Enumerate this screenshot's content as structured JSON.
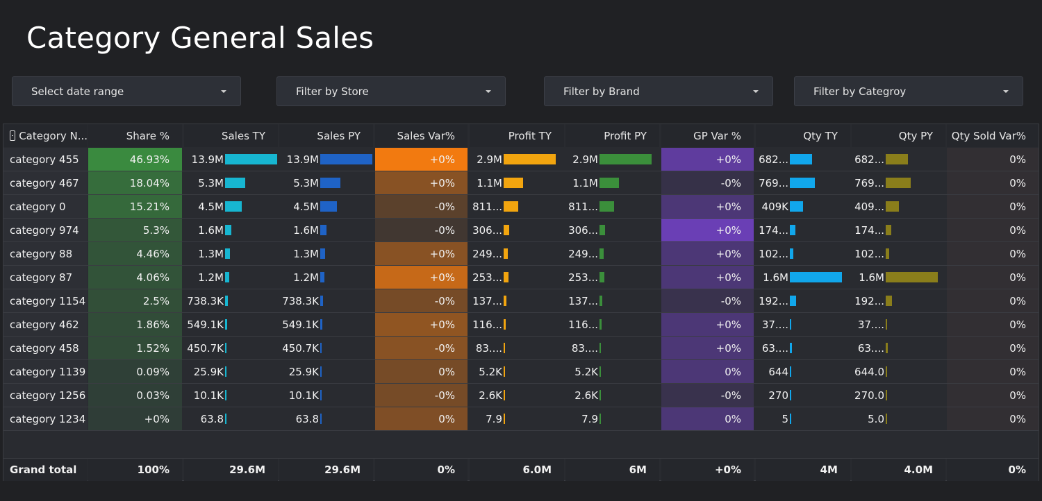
{
  "page_title": "Category General Sales",
  "filters": [
    {
      "label": "Select date range"
    },
    {
      "label": "Filter by Store"
    },
    {
      "label": "Filter by Brand"
    },
    {
      "label": "Filter by Categroy"
    }
  ],
  "table": {
    "headers": [
      "Category N...",
      "Share %",
      "Sales TY",
      "Sales PY",
      "Sales Var%",
      "Profit TY",
      "Profit PY",
      "GP Var %",
      "Qty TY",
      "Qty PY",
      "Qty Sold Var%"
    ],
    "colors": {
      "share": "#3a8a3f",
      "sales_ty_bar": "#17b6d1",
      "sales_py_bar": "#1f63c6",
      "sales_var": "#f27a10",
      "profit_ty_bar": "#f2a50f",
      "profit_py_bar": "#3b8f3b",
      "gp_var": "#6a3fb5",
      "qty_ty_bar": "#11a7ec",
      "qty_py_bar": "#8a7e1b"
    },
    "rows": [
      {
        "name": "category 455",
        "share": "46.93%",
        "share_value": 46.93,
        "sales_ty": "13.9M",
        "sales_ty_value": 13.9,
        "sales_py": "13.9M",
        "sales_py_value": 13.9,
        "sales_var": "+0%",
        "sales_var_intensity": 1.0,
        "profit_ty": "2.9M",
        "profit_ty_value": 2.9,
        "profit_py": "2.9M",
        "profit_py_value": 2.9,
        "gp_var": "+0%",
        "gp_var_intensity": 0.8,
        "qty_ty": "682...",
        "qty_ty_value": 0.682,
        "qty_py": "682...",
        "qty_py_value": 0.682,
        "qty_var": "0%"
      },
      {
        "name": "category 467",
        "share": "18.04%",
        "share_value": 18.04,
        "sales_ty": "5.3M",
        "sales_ty_value": 5.3,
        "sales_py": "5.3M",
        "sales_py_value": 5.3,
        "sales_var": "+0%",
        "sales_var_intensity": 0.4,
        "profit_ty": "1.1M",
        "profit_ty_value": 1.1,
        "profit_py": "1.1M",
        "profit_py_value": 1.1,
        "gp_var": "-0%",
        "gp_var_intensity": 0.05,
        "qty_ty": "769...",
        "qty_ty_value": 0.769,
        "qty_py": "769...",
        "qty_py_value": 0.769,
        "qty_var": "0%"
      },
      {
        "name": "category 0",
        "share": "15.21%",
        "share_value": 15.21,
        "sales_ty": "4.5M",
        "sales_ty_value": 4.5,
        "sales_py": "4.5M",
        "sales_py_value": 4.5,
        "sales_var": "-0%",
        "sales_var_intensity": 0.15,
        "profit_ty": "811...",
        "profit_ty_value": 0.811,
        "profit_py": "811...",
        "profit_py_value": 0.811,
        "gp_var": "+0%",
        "gp_var_intensity": 0.45,
        "qty_ty": "409K",
        "qty_ty_value": 0.409,
        "qty_py": "409...",
        "qty_py_value": 0.409,
        "qty_var": "0%"
      },
      {
        "name": "category 974",
        "share": "5.3%",
        "share_value": 5.3,
        "sales_ty": "1.6M",
        "sales_ty_value": 1.6,
        "sales_py": "1.6M",
        "sales_py_value": 1.6,
        "sales_var": "-0%",
        "sales_var_intensity": 0.0,
        "profit_ty": "306...",
        "profit_ty_value": 0.306,
        "profit_py": "306...",
        "profit_py_value": 0.306,
        "gp_var": "+0%",
        "gp_var_intensity": 1.0,
        "qty_ty": "174...",
        "qty_ty_value": 0.174,
        "qty_py": "174...",
        "qty_py_value": 0.174,
        "qty_var": "0%"
      },
      {
        "name": "category 88",
        "share": "4.46%",
        "share_value": 4.46,
        "sales_ty": "1.3M",
        "sales_ty_value": 1.3,
        "sales_py": "1.3M",
        "sales_py_value": 1.3,
        "sales_var": "+0%",
        "sales_var_intensity": 0.4,
        "profit_ty": "249...",
        "profit_ty_value": 0.249,
        "profit_py": "249...",
        "profit_py_value": 0.249,
        "gp_var": "+0%",
        "gp_var_intensity": 0.45,
        "qty_ty": "102...",
        "qty_ty_value": 0.102,
        "qty_py": "102...",
        "qty_py_value": 0.102,
        "qty_var": "0%"
      },
      {
        "name": "category 87",
        "share": "4.06%",
        "share_value": 4.06,
        "sales_ty": "1.2M",
        "sales_ty_value": 1.2,
        "sales_py": "1.2M",
        "sales_py_value": 1.2,
        "sales_var": "+0%",
        "sales_var_intensity": 0.75,
        "profit_ty": "253...",
        "profit_ty_value": 0.253,
        "profit_py": "253...",
        "profit_py_value": 0.253,
        "gp_var": "+0%",
        "gp_var_intensity": 0.45,
        "qty_ty": "1.6M",
        "qty_ty_value": 1.6,
        "qty_py": "1.6M",
        "qty_py_value": 1.6,
        "qty_var": "0%"
      },
      {
        "name": "category 1154",
        "share": "2.5%",
        "share_value": 2.5,
        "sales_ty": "738.3K",
        "sales_ty_value": 0.7383,
        "sales_py": "738.3K",
        "sales_py_value": 0.7383,
        "sales_var": "-0%",
        "sales_var_intensity": 0.3,
        "profit_ty": "137...",
        "profit_ty_value": 0.137,
        "profit_py": "137...",
        "profit_py_value": 0.137,
        "gp_var": "-0%",
        "gp_var_intensity": 0.1,
        "qty_ty": "192...",
        "qty_ty_value": 0.192,
        "qty_py": "192...",
        "qty_py_value": 0.192,
        "qty_var": "0%"
      },
      {
        "name": "category 462",
        "share": "1.86%",
        "share_value": 1.86,
        "sales_ty": "549.1K",
        "sales_ty_value": 0.5491,
        "sales_py": "549.1K",
        "sales_py_value": 0.5491,
        "sales_var": "+0%",
        "sales_var_intensity": 0.45,
        "profit_ty": "116...",
        "profit_ty_value": 0.116,
        "profit_py": "116...",
        "profit_py_value": 0.116,
        "gp_var": "+0%",
        "gp_var_intensity": 0.45,
        "qty_ty": "37....",
        "qty_ty_value": 0.037,
        "qty_py": "37....",
        "qty_py_value": 0.037,
        "qty_var": "0%"
      },
      {
        "name": "category 458",
        "share": "1.52%",
        "share_value": 1.52,
        "sales_ty": "450.7K",
        "sales_ty_value": 0.4507,
        "sales_py": "450.7K",
        "sales_py_value": 0.4507,
        "sales_var": "-0%",
        "sales_var_intensity": 0.4,
        "profit_ty": "83....",
        "profit_ty_value": 0.083,
        "profit_py": "83....",
        "profit_py_value": 0.083,
        "gp_var": "+0%",
        "gp_var_intensity": 0.45,
        "qty_ty": "63....",
        "qty_ty_value": 0.063,
        "qty_py": "63....",
        "qty_py_value": 0.063,
        "qty_var": "0%"
      },
      {
        "name": "category 1139",
        "share": "0.09%",
        "share_value": 0.09,
        "sales_ty": "25.9K",
        "sales_ty_value": 0.0259,
        "sales_py": "25.9K",
        "sales_py_value": 0.0259,
        "sales_var": "0%",
        "sales_var_intensity": 0.3,
        "profit_ty": "5.2K",
        "profit_ty_value": 0.0052,
        "profit_py": "5.2K",
        "profit_py_value": 0.0052,
        "gp_var": "0%",
        "gp_var_intensity": 0.45,
        "qty_ty": "644",
        "qty_ty_value": 0.000644,
        "qty_py": "644.0",
        "qty_py_value": 0.000644,
        "qty_var": "0%"
      },
      {
        "name": "category 1256",
        "share": "0.03%",
        "share_value": 0.03,
        "sales_ty": "10.1K",
        "sales_ty_value": 0.0101,
        "sales_py": "10.1K",
        "sales_py_value": 0.0101,
        "sales_var": "-0%",
        "sales_var_intensity": 0.3,
        "profit_ty": "2.6K",
        "profit_ty_value": 0.0026,
        "profit_py": "2.6K",
        "profit_py_value": 0.0026,
        "gp_var": "-0%",
        "gp_var_intensity": 0.1,
        "qty_ty": "270",
        "qty_ty_value": 0.00027,
        "qty_py": "270.0",
        "qty_py_value": 0.00027,
        "qty_var": "0%"
      },
      {
        "name": "category 1234",
        "share": "+0%",
        "share_value": 0.0,
        "sales_ty": "63.8",
        "sales_ty_value": 6.38e-05,
        "sales_py": "63.8",
        "sales_py_value": 6.38e-05,
        "sales_var": "0%",
        "sales_var_intensity": 0.35,
        "profit_ty": "7.9",
        "profit_ty_value": 7.9e-06,
        "profit_py": "7.9",
        "profit_py_value": 7.9e-06,
        "gp_var": "0%",
        "gp_var_intensity": 0.45,
        "qty_ty": "5",
        "qty_ty_value": 5e-06,
        "qty_py": "5.0",
        "qty_py_value": 5e-06,
        "qty_var": "0%"
      }
    ],
    "totals": {
      "label": "Grand total",
      "share": "100%",
      "sales_ty": "29.6M",
      "sales_py": "29.6M",
      "sales_var": "0%",
      "profit_ty": "6.0M",
      "profit_py": "6M",
      "gp_var": "+0%",
      "qty_ty": "4M",
      "qty_py": "4.0M",
      "qty_var": "0%"
    }
  }
}
